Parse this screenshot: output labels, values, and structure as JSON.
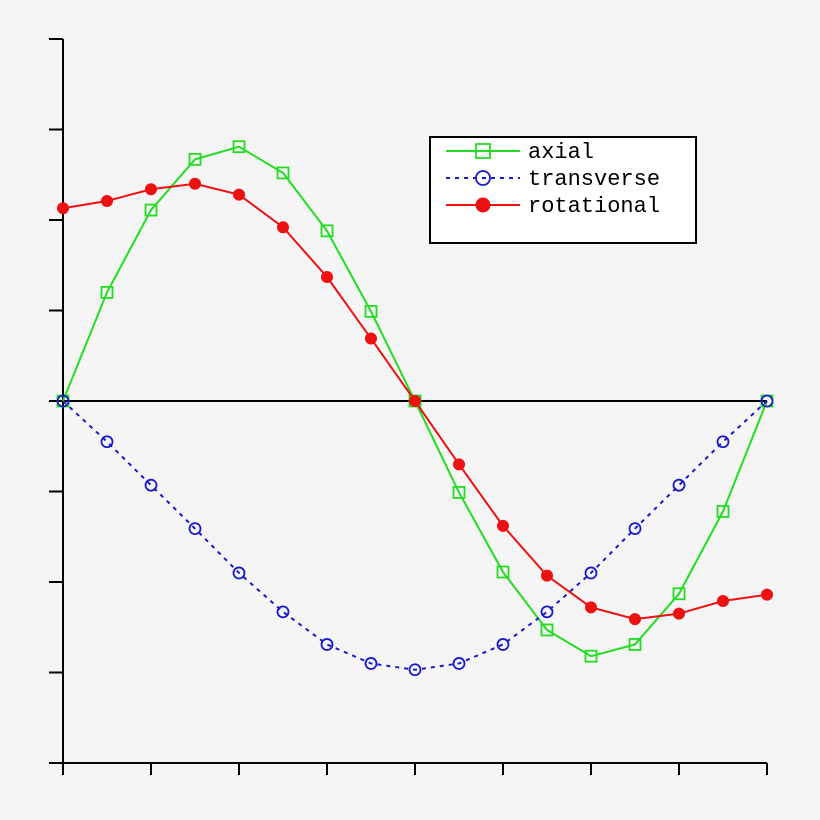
{
  "chart_data": {
    "type": "line",
    "x": [
      0,
      1,
      2,
      3,
      4,
      5,
      6,
      7,
      8,
      9,
      10,
      11,
      12,
      13,
      14,
      15,
      16
    ],
    "xlim": [
      0,
      16
    ],
    "xticks": [
      0,
      2,
      4,
      6,
      8,
      10,
      12,
      14,
      16
    ],
    "ylim": [
      -4,
      4
    ],
    "yticks": [
      -4,
      -3,
      -2,
      -1,
      0,
      1,
      2,
      3,
      4
    ],
    "zero_line": true,
    "legend": "upper right",
    "series": [
      {
        "name": "axial",
        "color": "#22dd22",
        "linestyle": "solid",
        "marker": "square-open",
        "values": [
          0,
          1.2,
          2.11,
          2.67,
          2.81,
          2.52,
          1.88,
          0.99,
          0,
          -1.01,
          -1.89,
          -2.53,
          -2.82,
          -2.69,
          -2.13,
          -1.22,
          0
        ]
      },
      {
        "name": "transverse",
        "color": "#1a1acc",
        "linestyle": "dotted",
        "marker": "circle-open",
        "values": [
          0,
          -0.45,
          -0.93,
          -1.41,
          -1.9,
          -2.33,
          -2.69,
          -2.9,
          -2.97,
          -2.9,
          -2.69,
          -2.33,
          -1.9,
          -1.41,
          -0.93,
          -0.45,
          0
        ]
      },
      {
        "name": "rotational",
        "color": "#ee1111",
        "linestyle": "solid",
        "marker": "circle-filled",
        "values": [
          2.13,
          2.21,
          2.34,
          2.4,
          2.28,
          1.92,
          1.37,
          0.69,
          0,
          -0.7,
          -1.38,
          -1.93,
          -2.28,
          -2.41,
          -2.35,
          -2.21,
          -2.14
        ]
      }
    ]
  }
}
